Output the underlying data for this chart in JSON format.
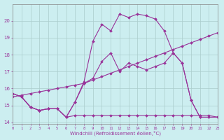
{
  "xlabel": "Windchill (Refroidissement éolien,°C)",
  "bg_color": "#cceef0",
  "grid_color": "#aacccc",
  "line_color": "#993399",
  "x_ticks": [
    0,
    1,
    2,
    3,
    4,
    5,
    6,
    7,
    8,
    9,
    10,
    11,
    12,
    13,
    14,
    15,
    16,
    17,
    18,
    19,
    20,
    21,
    22,
    23
  ],
  "xlim": [
    0,
    23
  ],
  "ylim": [
    13.9,
    21.0
  ],
  "y_ticks": [
    14,
    15,
    16,
    17,
    18,
    19,
    20
  ],
  "series_top_x": [
    0,
    1,
    2,
    3,
    4,
    5,
    6,
    7,
    8,
    9,
    10,
    11,
    12,
    13,
    14,
    15,
    16,
    17,
    18,
    19,
    20,
    21,
    22,
    23
  ],
  "series_top_y": [
    15.7,
    15.5,
    14.9,
    14.7,
    14.8,
    14.8,
    14.3,
    15.2,
    16.4,
    18.8,
    19.8,
    19.4,
    20.4,
    20.2,
    20.4,
    20.3,
    20.1,
    19.4,
    18.1,
    17.5,
    15.3,
    14.3,
    14.3,
    14.3
  ],
  "series_mid_x": [
    0,
    1,
    2,
    3,
    4,
    5,
    6,
    7,
    8,
    9,
    10,
    11,
    12,
    13,
    14,
    15,
    16,
    17,
    18,
    19,
    20,
    21,
    22,
    23
  ],
  "series_mid_y": [
    15.7,
    15.5,
    14.9,
    14.7,
    14.8,
    14.8,
    14.3,
    15.2,
    16.3,
    16.6,
    17.6,
    18.1,
    17.0,
    17.5,
    17.3,
    17.1,
    17.3,
    17.5,
    18.1,
    17.5,
    15.3,
    14.3,
    14.3,
    14.3
  ],
  "series_diag_x": [
    0,
    1,
    2,
    3,
    4,
    5,
    6,
    7,
    8,
    9,
    10,
    11,
    12,
    13,
    14,
    15,
    16,
    17,
    18,
    19,
    20,
    21,
    22,
    23
  ],
  "series_diag_y": [
    15.5,
    15.6,
    15.7,
    15.8,
    15.9,
    16.0,
    16.1,
    16.2,
    16.3,
    16.5,
    16.7,
    16.9,
    17.1,
    17.3,
    17.5,
    17.7,
    17.9,
    18.1,
    18.3,
    18.5,
    18.7,
    18.9,
    19.1,
    19.3
  ],
  "series_bot_x": [
    0,
    1,
    2,
    3,
    4,
    5,
    6,
    7,
    8,
    9,
    10,
    11,
    12,
    13,
    14,
    15,
    16,
    17,
    18,
    19,
    20,
    21,
    22,
    23
  ],
  "series_bot_y": [
    15.7,
    15.5,
    14.9,
    14.7,
    14.8,
    14.8,
    14.3,
    14.4,
    14.4,
    14.4,
    14.4,
    14.4,
    14.4,
    14.4,
    14.4,
    14.4,
    14.4,
    14.4,
    14.4,
    14.4,
    14.4,
    14.4,
    14.4,
    14.3
  ]
}
